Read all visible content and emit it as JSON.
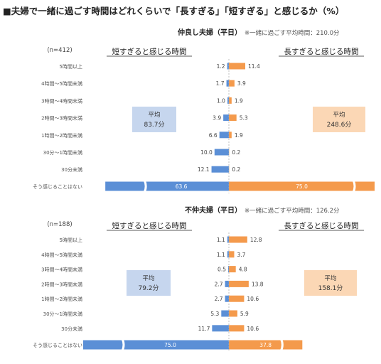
{
  "title": "■夫婦で一緒に過ごす時間はどれくらいで「長すぎる」「短すぎる」と感じるか（%）",
  "colors": {
    "short": "#5b8fd6",
    "long": "#f49a4c",
    "short_box": "#c6d6ee",
    "long_box": "#fbd7b5",
    "axis": "#b0b0b0"
  },
  "chart_data": [
    {
      "type": "bar",
      "title": "仲良し夫婦（平日）",
      "subtitle": "※一緒に過ごす平均時間：210.0分",
      "n_label": "(n=412)",
      "left_header": "短すぎると感じる時間",
      "right_header": "長すぎると感じる時間",
      "categories": [
        "5時間以上",
        "4時間～5時間未満",
        "3時間～4時間未満",
        "2時間～3時間未満",
        "1時間～2時間未満",
        "30分～1時間未満",
        "30分未満",
        "そう感じることはない"
      ],
      "series": [
        {
          "name": "短すぎると感じる時間",
          "values": [
            1.2,
            1.7,
            1.0,
            3.9,
            6.6,
            10.0,
            12.1,
            63.6
          ]
        },
        {
          "name": "長すぎると感じる時間",
          "values": [
            11.4,
            3.9,
            1.9,
            5.3,
            1.9,
            0.2,
            0.2,
            75.0
          ]
        }
      ],
      "left_average": {
        "label": "平均",
        "value": "83.7分"
      },
      "right_average": {
        "label": "平均",
        "value": "248.6分"
      },
      "value_labels_short": [
        "1.2",
        "1.7",
        "1.0",
        "3.9",
        "6.6",
        "10.0",
        "12.1",
        "63.6"
      ],
      "value_labels_long": [
        "11.4",
        "3.9",
        "1.9",
        "5.3",
        "1.9",
        "0.2",
        "0.2",
        "75.0"
      ],
      "broken_last_row": true
    },
    {
      "type": "bar",
      "title": "不仲夫婦（平日）",
      "subtitle": "※一緒に過ごす平均時間：126.2分",
      "n_label": "(n=188)",
      "left_header": "短すぎると感じる時間",
      "right_header": "長すぎると感じる時間",
      "categories": [
        "5時間以上",
        "4時間～5時間未満",
        "3時間～4時間未満",
        "2時間～3時間未満",
        "1時間～2時間未満",
        "30分～1時間未満",
        "30分未満",
        "そう感じることはない"
      ],
      "series": [
        {
          "name": "短すぎると感じる時間",
          "values": [
            1.1,
            1.1,
            0.5,
            2.7,
            2.7,
            5.3,
            11.7,
            75.0
          ]
        },
        {
          "name": "長すぎると感じる時間",
          "values": [
            12.8,
            3.7,
            4.8,
            13.8,
            10.6,
            5.9,
            10.6,
            37.8
          ]
        }
      ],
      "left_average": {
        "label": "平均",
        "value": "79.2分"
      },
      "right_average": {
        "label": "平均",
        "value": "158.1分"
      },
      "value_labels_short": [
        "1.1",
        "1.1",
        "0.5",
        "2.7",
        "2.7",
        "5.3",
        "11.7",
        "75.0"
      ],
      "value_labels_long": [
        "12.8",
        "3.7",
        "4.8",
        "13.8",
        "10.6",
        "5.9",
        "10.6",
        "37.8"
      ],
      "broken_last_row": true
    }
  ]
}
